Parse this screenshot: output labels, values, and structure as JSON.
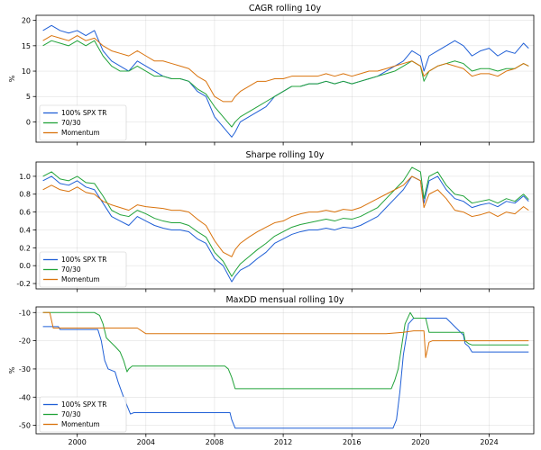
{
  "chart_data": [
    {
      "type": "line",
      "title": "CAGR rolling 10y",
      "ylabel": "%",
      "xlim": [
        1997.6,
        2026.6
      ],
      "ylim": [
        -4,
        21
      ],
      "xticks": [
        2000,
        2004,
        2008,
        2012,
        2016,
        2020,
        2024
      ],
      "xtick_labels": [],
      "yticks": [
        0,
        5,
        10,
        15,
        20
      ],
      "grid": true,
      "legend": "lower-left",
      "series": [
        {
          "name": "100% SPX TR",
          "color": "#1f5fd6",
          "x": [
            1998.0,
            1998.5,
            1999.0,
            1999.5,
            2000.0,
            2000.5,
            2001.0,
            2001.5,
            2002.0,
            2002.5,
            2003.0,
            2003.5,
            2004.0,
            2004.5,
            2005.0,
            2005.5,
            2006.0,
            2006.5,
            2007.0,
            2007.5,
            2008.0,
            2008.5,
            2009.0,
            2009.2,
            2009.5,
            2010.0,
            2010.5,
            2011.0,
            2011.5,
            2012.0,
            2012.5,
            2013.0,
            2013.5,
            2014.0,
            2014.5,
            2015.0,
            2015.5,
            2016.0,
            2016.5,
            2017.0,
            2017.5,
            2018.0,
            2018.5,
            2019.0,
            2019.5,
            2020.0,
            2020.2,
            2020.5,
            2021.0,
            2021.5,
            2022.0,
            2022.5,
            2023.0,
            2023.5,
            2024.0,
            2024.5,
            2025.0,
            2025.5,
            2026.0,
            2026.3
          ],
          "y": [
            18,
            19,
            18,
            17.5,
            18,
            17,
            18,
            14,
            12,
            11,
            10,
            12,
            11,
            10,
            9,
            8.5,
            8.5,
            8,
            6,
            5,
            1,
            -1,
            -3,
            -2,
            0,
            1,
            2,
            3,
            5,
            6,
            7,
            7,
            7.5,
            7.5,
            8,
            7.5,
            8,
            7.5,
            8,
            8.5,
            9,
            10,
            11,
            12,
            14,
            13,
            10,
            13,
            14,
            15,
            16,
            15,
            13,
            14,
            14.5,
            13,
            14,
            13.5,
            15.5,
            14.5
          ]
        },
        {
          "name": "70/30",
          "color": "#22a33a",
          "x": [
            1998.0,
            1998.5,
            1999.0,
            1999.5,
            2000.0,
            2000.5,
            2001.0,
            2001.5,
            2002.0,
            2002.5,
            2003.0,
            2003.5,
            2004.0,
            2004.5,
            2005.0,
            2005.5,
            2006.0,
            2006.5,
            2007.0,
            2007.5,
            2008.0,
            2008.5,
            2009.0,
            2009.2,
            2009.5,
            2010.0,
            2010.5,
            2011.0,
            2011.5,
            2012.0,
            2012.5,
            2013.0,
            2013.5,
            2014.0,
            2014.5,
            2015.0,
            2015.5,
            2016.0,
            2016.5,
            2017.0,
            2017.5,
            2018.0,
            2018.5,
            2019.0,
            2019.5,
            2020.0,
            2020.2,
            2020.5,
            2021.0,
            2021.5,
            2022.0,
            2022.5,
            2023.0,
            2023.5,
            2024.0,
            2024.5,
            2025.0,
            2025.5,
            2026.0,
            2026.3
          ],
          "y": [
            15,
            16,
            15.5,
            15,
            16,
            15,
            16,
            13,
            11,
            10,
            10,
            11,
            10,
            9,
            9,
            8.5,
            8.5,
            8,
            6.5,
            5.5,
            3,
            1,
            -1,
            0,
            1,
            2,
            3,
            4,
            5,
            6,
            7,
            7,
            7.5,
            7.5,
            8,
            7.5,
            8,
            7.5,
            8,
            8.5,
            9,
            9.5,
            10,
            11,
            12,
            11,
            8,
            10,
            11,
            11.5,
            12,
            11.5,
            10,
            10.5,
            10.5,
            10,
            10.5,
            10.5,
            11.5,
            11
          ]
        },
        {
          "name": "Momentum",
          "color": "#d9730d",
          "x": [
            1998.0,
            1998.5,
            1999.0,
            1999.5,
            2000.0,
            2000.5,
            2001.0,
            2001.5,
            2002.0,
            2002.5,
            2003.0,
            2003.5,
            2004.0,
            2004.5,
            2005.0,
            2005.5,
            2006.0,
            2006.5,
            2007.0,
            2007.5,
            2008.0,
            2008.5,
            2009.0,
            2009.2,
            2009.5,
            2010.0,
            2010.5,
            2011.0,
            2011.5,
            2012.0,
            2012.5,
            2013.0,
            2013.5,
            2014.0,
            2014.5,
            2015.0,
            2015.5,
            2016.0,
            2016.5,
            2017.0,
            2017.5,
            2018.0,
            2018.5,
            2019.0,
            2019.5,
            2020.0,
            2020.2,
            2020.5,
            2021.0,
            2021.5,
            2022.0,
            2022.5,
            2023.0,
            2023.5,
            2024.0,
            2024.5,
            2025.0,
            2025.5,
            2026.0,
            2026.3
          ],
          "y": [
            16,
            17,
            16.5,
            16,
            17,
            16,
            16.5,
            15,
            14,
            13.5,
            13,
            14,
            13,
            12,
            12,
            11.5,
            11,
            10.5,
            9,
            8,
            5,
            4,
            4,
            5,
            6,
            7,
            8,
            8,
            8.5,
            8.5,
            9,
            9,
            9,
            9,
            9.5,
            9,
            9.5,
            9,
            9.5,
            10,
            10,
            10.5,
            11,
            11.5,
            12,
            11,
            9,
            10,
            11,
            11.5,
            11,
            10.5,
            9,
            9.5,
            9.5,
            9,
            10,
            10.5,
            11.5,
            11
          ]
        }
      ]
    },
    {
      "type": "line",
      "title": "Sharpe rolling 10y",
      "ylabel": "",
      "xlim": [
        1997.6,
        2026.6
      ],
      "ylim": [
        -0.26,
        1.16
      ],
      "xticks": [
        2000,
        2004,
        2008,
        2012,
        2016,
        2020,
        2024
      ],
      "xtick_labels": [],
      "yticks": [
        -0.2,
        0.0,
        0.2,
        0.4,
        0.6,
        0.8,
        1.0
      ],
      "ytick_labels": [
        "-0.2",
        "0.0",
        "0.2",
        "0.4",
        "0.6",
        "0.8",
        "1.0"
      ],
      "grid": true,
      "legend": "lower-left",
      "series": [
        {
          "name": "100% SPX TR",
          "color": "#1f5fd6",
          "x": [
            1998.0,
            1998.5,
            1999.0,
            1999.5,
            2000.0,
            2000.5,
            2001.0,
            2001.5,
            2002.0,
            2002.5,
            2003.0,
            2003.5,
            2004.0,
            2004.5,
            2005.0,
            2005.5,
            2006.0,
            2006.5,
            2007.0,
            2007.5,
            2008.0,
            2008.5,
            2009.0,
            2009.2,
            2009.5,
            2010.0,
            2010.5,
            2011.0,
            2011.5,
            2012.0,
            2012.5,
            2013.0,
            2013.5,
            2014.0,
            2014.5,
            2015.0,
            2015.5,
            2016.0,
            2016.5,
            2017.0,
            2017.5,
            2018.0,
            2018.5,
            2019.0,
            2019.5,
            2020.0,
            2020.2,
            2020.5,
            2021.0,
            2021.5,
            2022.0,
            2022.5,
            2023.0,
            2023.5,
            2024.0,
            2024.5,
            2025.0,
            2025.5,
            2026.0,
            2026.3
          ],
          "y": [
            0.95,
            1.0,
            0.92,
            0.9,
            0.95,
            0.88,
            0.85,
            0.7,
            0.55,
            0.5,
            0.45,
            0.55,
            0.5,
            0.45,
            0.42,
            0.4,
            0.4,
            0.38,
            0.3,
            0.25,
            0.08,
            0.0,
            -0.18,
            -0.12,
            -0.05,
            0.0,
            0.08,
            0.15,
            0.25,
            0.3,
            0.35,
            0.38,
            0.4,
            0.4,
            0.42,
            0.4,
            0.43,
            0.42,
            0.45,
            0.5,
            0.55,
            0.65,
            0.75,
            0.85,
            1.0,
            0.95,
            0.7,
            0.95,
            1.0,
            0.85,
            0.75,
            0.72,
            0.65,
            0.68,
            0.7,
            0.66,
            0.72,
            0.7,
            0.78,
            0.72
          ]
        },
        {
          "name": "70/30",
          "color": "#22a33a",
          "x": [
            1998.0,
            1998.5,
            1999.0,
            1999.5,
            2000.0,
            2000.5,
            2001.0,
            2001.5,
            2002.0,
            2002.5,
            2003.0,
            2003.5,
            2004.0,
            2004.5,
            2005.0,
            2005.5,
            2006.0,
            2006.5,
            2007.0,
            2007.5,
            2008.0,
            2008.5,
            2009.0,
            2009.2,
            2009.5,
            2010.0,
            2010.5,
            2011.0,
            2011.5,
            2012.0,
            2012.5,
            2013.0,
            2013.5,
            2014.0,
            2014.5,
            2015.0,
            2015.5,
            2016.0,
            2016.5,
            2017.0,
            2017.5,
            2018.0,
            2018.5,
            2019.0,
            2019.5,
            2020.0,
            2020.2,
            2020.5,
            2021.0,
            2021.5,
            2022.0,
            2022.5,
            2023.0,
            2023.5,
            2024.0,
            2024.5,
            2025.0,
            2025.5,
            2026.0,
            2026.3
          ],
          "y": [
            1.0,
            1.05,
            0.97,
            0.95,
            1.0,
            0.93,
            0.92,
            0.78,
            0.62,
            0.57,
            0.55,
            0.62,
            0.58,
            0.53,
            0.5,
            0.48,
            0.48,
            0.45,
            0.38,
            0.32,
            0.15,
            0.05,
            -0.12,
            -0.06,
            0.02,
            0.1,
            0.18,
            0.25,
            0.33,
            0.38,
            0.43,
            0.46,
            0.48,
            0.5,
            0.52,
            0.5,
            0.53,
            0.52,
            0.55,
            0.6,
            0.65,
            0.75,
            0.85,
            0.95,
            1.1,
            1.05,
            0.75,
            1.0,
            1.05,
            0.9,
            0.8,
            0.78,
            0.7,
            0.72,
            0.74,
            0.7,
            0.75,
            0.72,
            0.8,
            0.74
          ]
        },
        {
          "name": "Momentum",
          "color": "#d9730d",
          "x": [
            1998.0,
            1998.5,
            1999.0,
            1999.5,
            2000.0,
            2000.5,
            2001.0,
            2001.5,
            2002.0,
            2002.5,
            2003.0,
            2003.5,
            2004.0,
            2004.5,
            2005.0,
            2005.5,
            2006.0,
            2006.5,
            2007.0,
            2007.5,
            2008.0,
            2008.5,
            2009.0,
            2009.2,
            2009.5,
            2010.0,
            2010.5,
            2011.0,
            2011.5,
            2012.0,
            2012.5,
            2013.0,
            2013.5,
            2014.0,
            2014.5,
            2015.0,
            2015.5,
            2016.0,
            2016.5,
            2017.0,
            2017.5,
            2018.0,
            2018.5,
            2019.0,
            2019.5,
            2020.0,
            2020.2,
            2020.5,
            2021.0,
            2021.5,
            2022.0,
            2022.5,
            2023.0,
            2023.5,
            2024.0,
            2024.5,
            2025.0,
            2025.5,
            2026.0,
            2026.3
          ],
          "y": [
            0.85,
            0.9,
            0.85,
            0.83,
            0.88,
            0.82,
            0.8,
            0.72,
            0.68,
            0.65,
            0.62,
            0.68,
            0.66,
            0.65,
            0.64,
            0.62,
            0.62,
            0.6,
            0.52,
            0.45,
            0.28,
            0.15,
            0.1,
            0.18,
            0.25,
            0.32,
            0.38,
            0.43,
            0.48,
            0.5,
            0.55,
            0.58,
            0.6,
            0.6,
            0.62,
            0.6,
            0.63,
            0.62,
            0.65,
            0.7,
            0.75,
            0.8,
            0.85,
            0.9,
            1.0,
            0.95,
            0.65,
            0.8,
            0.85,
            0.75,
            0.62,
            0.6,
            0.55,
            0.57,
            0.6,
            0.55,
            0.6,
            0.58,
            0.66,
            0.62
          ]
        }
      ]
    },
    {
      "type": "line",
      "title": "MaxDD mensual rolling 10y",
      "ylabel": "%",
      "xlim": [
        1997.6,
        2026.6
      ],
      "ylim": [
        -53,
        -8
      ],
      "xticks": [
        2000,
        2004,
        2008,
        2012,
        2016,
        2020,
        2024
      ],
      "xtick_labels": [
        "2000",
        "2004",
        "2008",
        "2012",
        "2016",
        "2020",
        "2024"
      ],
      "yticks": [
        -50,
        -40,
        -30,
        -20,
        -10
      ],
      "grid": true,
      "legend": "lower-left",
      "series": [
        {
          "name": "100% SPX TR",
          "color": "#1f5fd6",
          "x": [
            1998.0,
            1998.9,
            1999.0,
            2001.2,
            2001.4,
            2001.6,
            2001.8,
            2002.2,
            2002.4,
            2002.7,
            2002.9,
            2003.1,
            2003.3,
            2004.0,
            2008.9,
            2009.0,
            2009.2,
            2018.4,
            2018.6,
            2018.8,
            2019.0,
            2019.3,
            2019.6,
            2021.5,
            2022.5,
            2022.6,
            2022.8,
            2023.0,
            2026.3
          ],
          "y": [
            -15,
            -15,
            -16,
            -16,
            -20,
            -27,
            -30,
            -31,
            -35,
            -40,
            -43,
            -46,
            -45.5,
            -45.5,
            -45.5,
            -48,
            -51,
            -51,
            -48,
            -38,
            -25,
            -14,
            -12,
            -12,
            -18,
            -21,
            -22,
            -24,
            -24
          ]
        },
        {
          "name": "70/30",
          "color": "#22a33a",
          "x": [
            1998.0,
            1999.0,
            2001.0,
            2001.3,
            2001.5,
            2001.7,
            2002.2,
            2002.5,
            2002.7,
            2002.9,
            2003.0,
            2003.2,
            2003.5,
            2008.6,
            2008.8,
            2009.0,
            2009.2,
            2018.3,
            2018.5,
            2018.7,
            2018.9,
            2019.1,
            2019.4,
            2019.6,
            2020.3,
            2020.5,
            2021.0,
            2022.5,
            2022.6,
            2022.8,
            2023.0,
            2026.3
          ],
          "y": [
            -10,
            -10,
            -10,
            -11,
            -14,
            -19,
            -22,
            -24,
            -27,
            -31,
            -30,
            -29,
            -29,
            -29,
            -30,
            -33,
            -37,
            -37,
            -34,
            -30,
            -22,
            -14,
            -10,
            -12,
            -12,
            -17,
            -17,
            -17,
            -20,
            -21,
            -21.5,
            -21.5
          ]
        },
        {
          "name": "Momentum",
          "color": "#d9730d",
          "x": [
            1998.0,
            1998.4,
            1998.6,
            2001.0,
            2003.5,
            2004.0,
            2004.5,
            2018.0,
            2019.0,
            2019.6,
            2020.0,
            2020.2,
            2020.3,
            2020.5,
            2020.7,
            2026.3
          ],
          "y": [
            -10,
            -10,
            -15.5,
            -15.5,
            -15.5,
            -17.5,
            -17.5,
            -17.5,
            -17,
            -16.5,
            -16.5,
            -16.5,
            -26,
            -20.5,
            -20,
            -20
          ]
        }
      ]
    }
  ]
}
